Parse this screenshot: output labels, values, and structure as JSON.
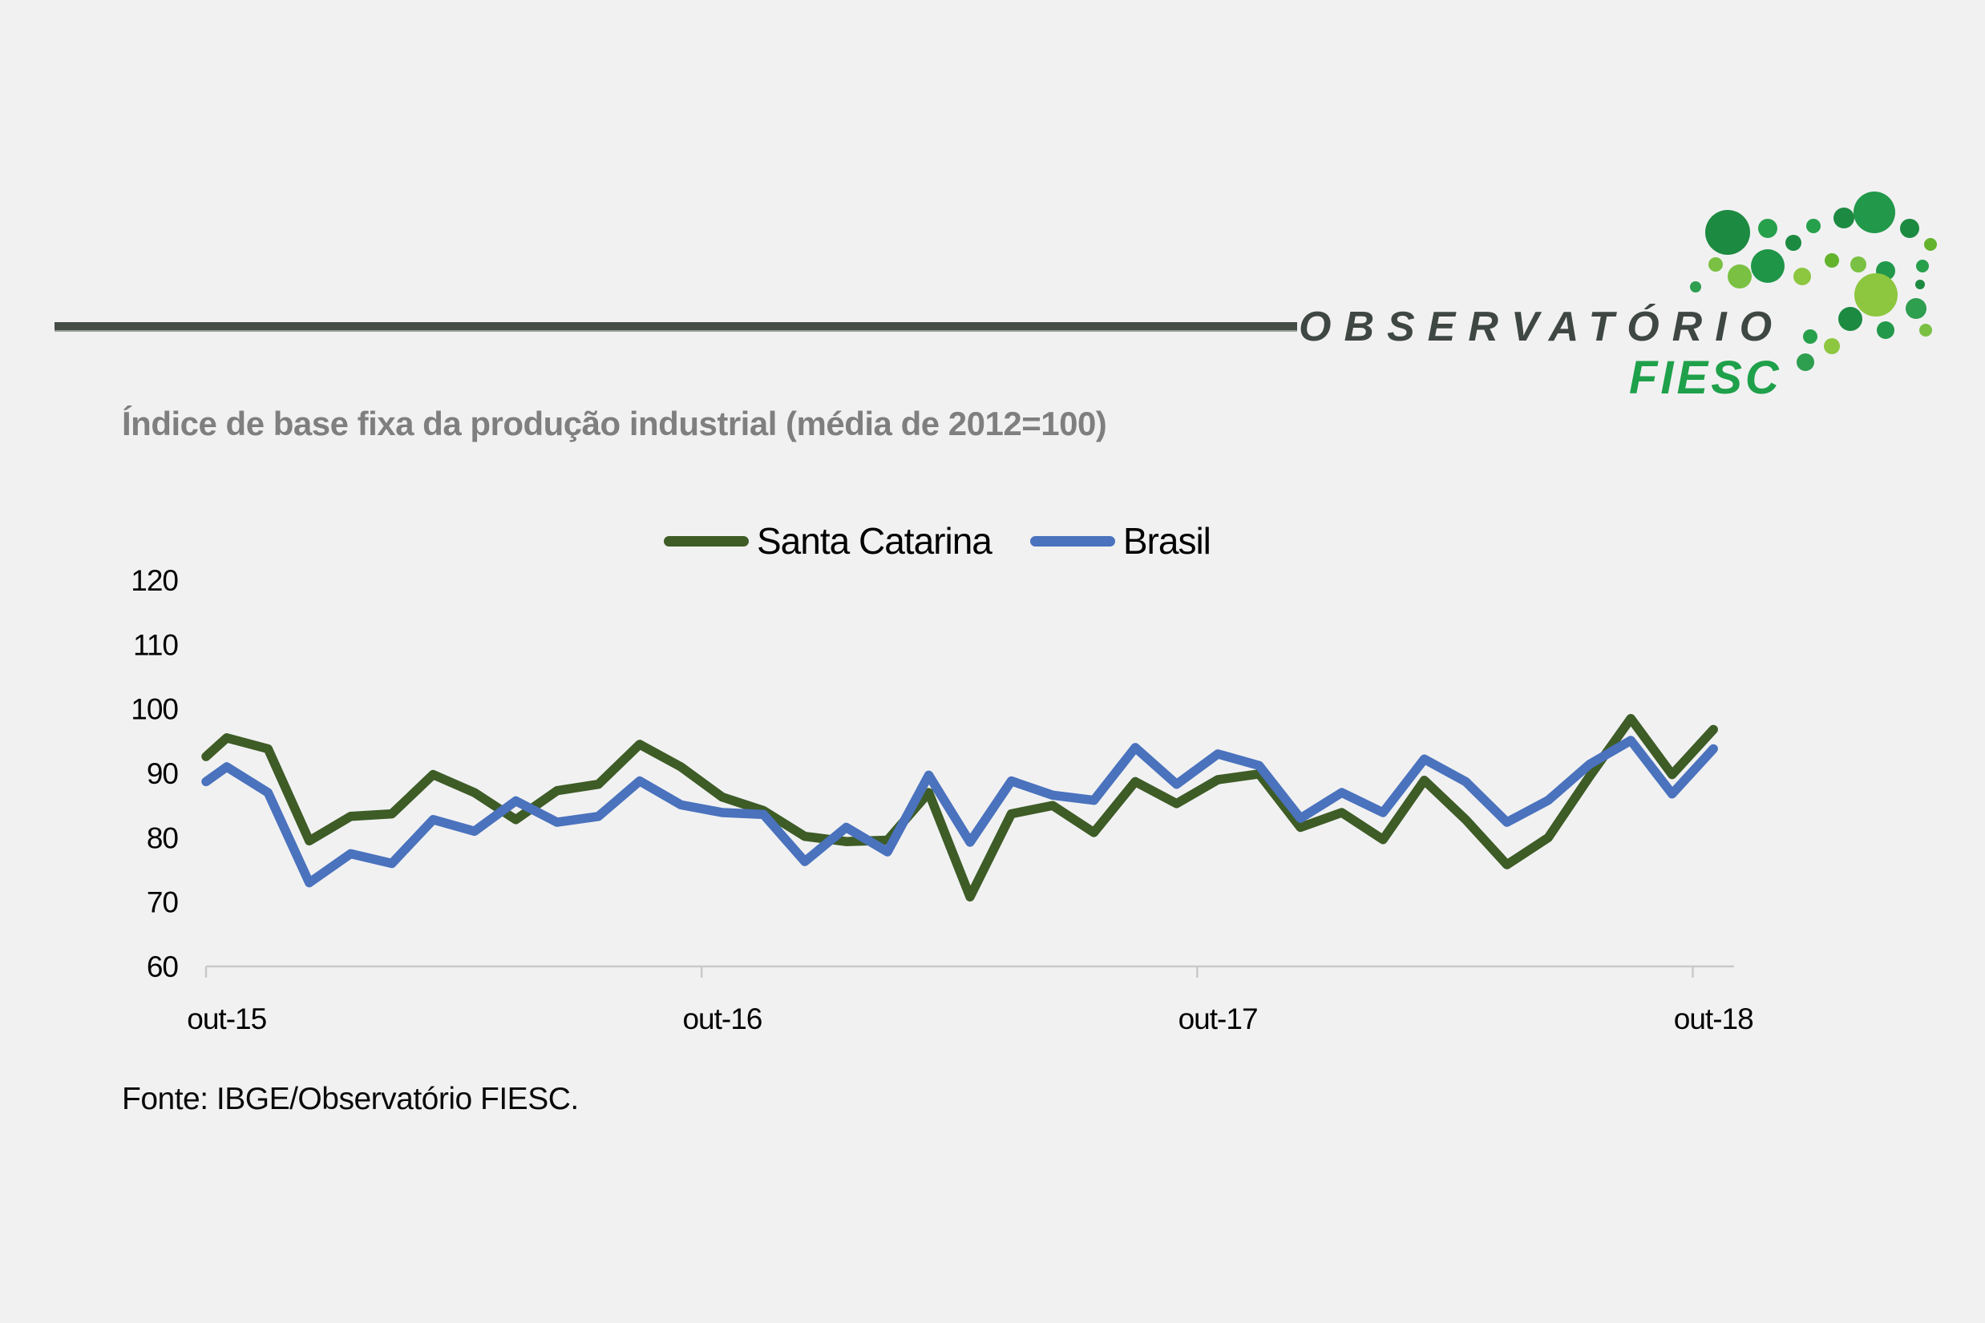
{
  "page": {
    "background": "#f1f1f2"
  },
  "header": {
    "divider_color": "#454d47",
    "logo": {
      "line1": "OBSERVATÓRIO",
      "line1_color": "#3f4743",
      "line2": "FIESC",
      "line2_color": "#1fa04a",
      "dot_palette": [
        "#1d8a41",
        "#27a04c",
        "#22984a",
        "#1f9547",
        "#2e9e4f",
        "#64b32d",
        "#7ac143",
        "#8dc63f"
      ]
    }
  },
  "title": {
    "text": "Índice de base fixa da produção industrial (média de 2012=100)",
    "color": "#7f7f7f"
  },
  "source": {
    "text": "Fonte: IBGE/Observatório FIESC."
  },
  "chart_data": {
    "type": "line",
    "title": "Índice de base fixa da produção industrial (média de 2012=100)",
    "x_frequency": "monthly",
    "x_tick_labels": [
      "out-15",
      "out-16",
      "out-17",
      "out-18"
    ],
    "x_tick_month_index": [
      0,
      12,
      24,
      36
    ],
    "y_ticks": [
      120,
      110,
      100,
      90,
      80,
      70,
      60
    ],
    "ylim": [
      60,
      120
    ],
    "grid": false,
    "legend_position": "top-center",
    "axis_color": "#c9c9c9",
    "tick_label_color": "#000000",
    "series": [
      {
        "name": "Santa Catarina",
        "color": "#3e5c26",
        "lead_in_edge_value": 92.6,
        "values": [
          95.5,
          93.8,
          79.5,
          83.3,
          83.7,
          89.8,
          87.0,
          82.8,
          87.3,
          88.3,
          94.5,
          91.0,
          86.3,
          84.2,
          80.2,
          79.4,
          79.6,
          87.0,
          70.8,
          83.7,
          85.0,
          80.8,
          88.7,
          85.3,
          89.0,
          89.9,
          81.6,
          83.9,
          79.7,
          88.9,
          82.8,
          75.8,
          80.0,
          89.5,
          98.5,
          89.8,
          96.8
        ]
      },
      {
        "name": "Brasil",
        "color": "#4a72bd",
        "lead_in_edge_value": 88.7,
        "values": [
          91.0,
          87.0,
          73.0,
          77.5,
          76.0,
          82.8,
          81.0,
          85.7,
          82.4,
          83.3,
          88.8,
          85.1,
          83.9,
          83.6,
          76.3,
          81.6,
          77.8,
          89.7,
          79.3,
          88.8,
          86.6,
          85.8,
          94.0,
          88.3,
          93.0,
          91.2,
          83.0,
          87.0,
          83.9,
          92.2,
          88.7,
          82.4,
          85.8,
          91.4,
          95.1,
          86.8,
          93.8
        ]
      }
    ]
  }
}
